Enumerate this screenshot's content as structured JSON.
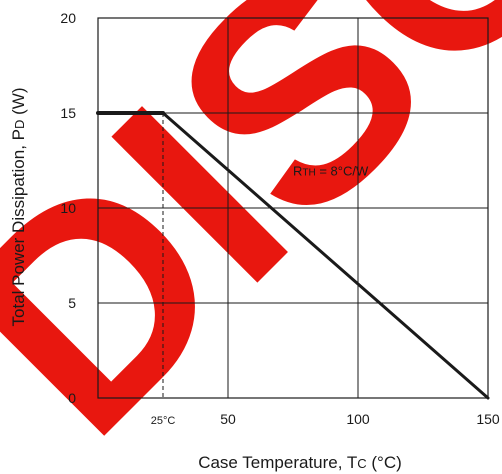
{
  "chart_data": {
    "type": "line",
    "title": "",
    "xlabel": {
      "prefix": "Case Temperature, T",
      "sub": "C",
      "suffix": " (°C)"
    },
    "ylabel": {
      "prefix": "Total Power Dissipation, P",
      "sub": "D",
      "suffix": " (W)"
    },
    "xlim": [
      0,
      150
    ],
    "ylim": [
      0,
      20
    ],
    "x_ticks": [
      {
        "value": 25,
        "label": "25°C",
        "small": true
      },
      {
        "value": 50,
        "label": "50"
      },
      {
        "value": 100,
        "label": "100"
      },
      {
        "value": 150,
        "label": "150"
      }
    ],
    "y_ticks": [
      {
        "value": 0,
        "label": "0"
      },
      {
        "value": 5,
        "label": "5"
      },
      {
        "value": 10,
        "label": "10"
      },
      {
        "value": 15,
        "label": "15"
      },
      {
        "value": 20,
        "label": "20"
      }
    ],
    "grid": true,
    "x_gridlines": [
      50,
      100
    ],
    "y_gridlines": [
      5,
      10,
      15
    ],
    "series": [
      {
        "color": "#1a1a1a",
        "x": [
          0,
          25,
          150
        ],
        "y": [
          15,
          15,
          0
        ]
      }
    ],
    "reference_line": {
      "x": 25,
      "from_y": 0,
      "to_y": 15,
      "style": "dashed"
    },
    "annotation": {
      "prefix": "R",
      "sub": "TH",
      "suffix": " = 8°C/W",
      "at_x": 75,
      "at_y": 11.7
    }
  },
  "watermark": {
    "text": "DISC",
    "color": "#e8170f"
  }
}
